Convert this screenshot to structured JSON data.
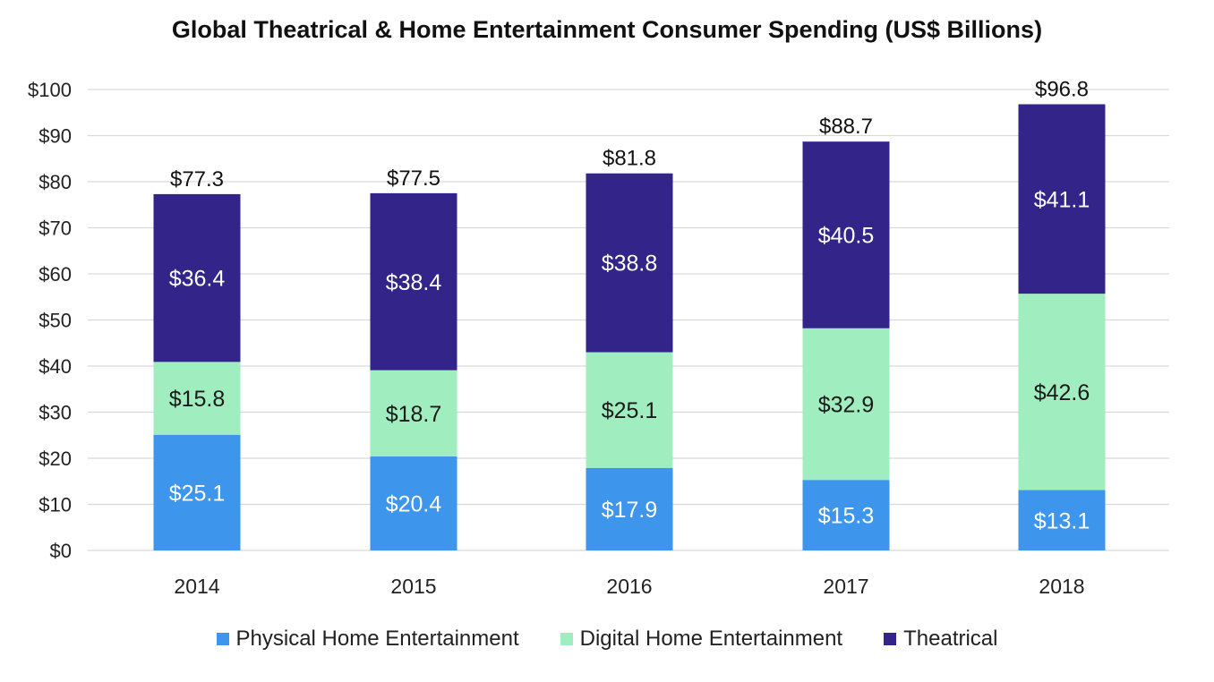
{
  "chart_data": {
    "type": "bar",
    "stacked": true,
    "title": "Global Theatrical & Home Entertainment Consumer Spending (US$ Billions)",
    "xlabel": "",
    "ylabel": "",
    "categories": [
      "2014",
      "2015",
      "2016",
      "2017",
      "2018"
    ],
    "ylim": [
      0,
      100
    ],
    "yticks": [
      0,
      10,
      20,
      30,
      40,
      50,
      60,
      70,
      80,
      90,
      100
    ],
    "ytick_labels": [
      "$0",
      "$10",
      "$20",
      "$30",
      "$40",
      "$50",
      "$60",
      "$70",
      "$80",
      "$90",
      "$100"
    ],
    "series": [
      {
        "name": "Physical Home Entertainment",
        "color": "#3e95ec",
        "values": [
          25.1,
          20.4,
          17.9,
          15.3,
          13.1
        ],
        "labels": [
          "$25.1",
          "$20.4",
          "$17.9",
          "$15.3",
          "$13.1"
        ]
      },
      {
        "name": "Digital Home Entertainment",
        "color": "#a0edc0",
        "values": [
          15.8,
          18.7,
          25.1,
          32.9,
          42.6
        ],
        "labels": [
          "$15.8",
          "$18.7",
          "$25.1",
          "$32.9",
          "$42.6"
        ]
      },
      {
        "name": "Theatrical",
        "color": "#33248a",
        "values": [
          36.4,
          38.4,
          38.8,
          40.5,
          41.1
        ],
        "labels": [
          "$36.4",
          "$38.4",
          "$38.8",
          "$40.5",
          "$41.1"
        ]
      }
    ],
    "totals": [
      77.3,
      77.5,
      81.8,
      88.7,
      96.8
    ],
    "total_labels": [
      "$77.3",
      "$77.5",
      "$81.8",
      "$88.7",
      "$96.8"
    ],
    "grid": true,
    "legend_position": "bottom"
  }
}
